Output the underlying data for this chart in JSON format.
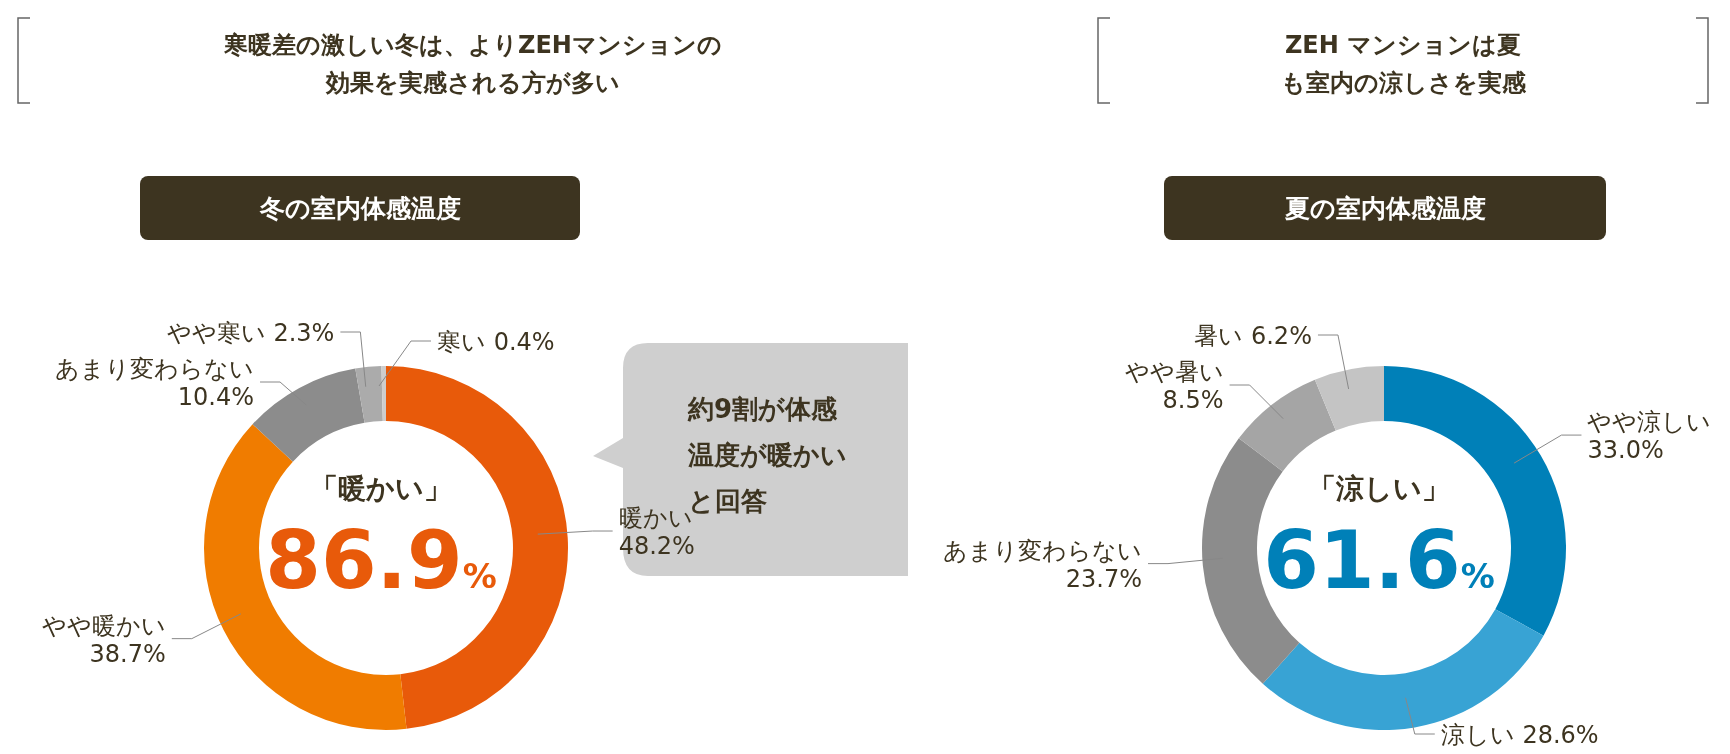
{
  "chart_data": [
    {
      "type": "donut",
      "title": "寒暖差の激しい冬は、よりZEHマンションの効果を実感される方が多い",
      "subtitle": "冬の室内体感温度",
      "categories": [
        "暖かい",
        "やや暖かい",
        "あまり変わらない",
        "やや寒い",
        "寒い"
      ],
      "values": [
        48.2,
        38.7,
        10.4,
        2.3,
        0.4
      ],
      "colors": [
        "#e85a0a",
        "#f07c00",
        "#8c8c8c",
        "#ababab",
        "#cdcdcd"
      ],
      "value_labels": [
        "48.2%",
        "38.7%",
        "10.4%",
        "2.3%",
        "0.4%"
      ],
      "annotations": [
        "「暖かい」",
        "86.9%",
        "約9割が体感温度が暖かいと回答"
      ]
    },
    {
      "type": "donut",
      "title": "ZEH マンションは夏も室内の涼しさを実感",
      "subtitle": "夏の室内体感温度",
      "categories": [
        "やや涼しい",
        "涼しい",
        "あまり変わらない",
        "やや暑い",
        "暑い"
      ],
      "values": [
        33.0,
        28.6,
        23.7,
        8.5,
        6.2
      ],
      "colors": [
        "#0080b8",
        "#38a3d4",
        "#8c8c8c",
        "#a5a5a5",
        "#c4c4c4"
      ],
      "value_labels": [
        "33.0%",
        "28.6%",
        "23.7%",
        "8.5%",
        "6.2%"
      ],
      "annotations": [
        "「涼しい」",
        "61.6%"
      ]
    }
  ]
}
